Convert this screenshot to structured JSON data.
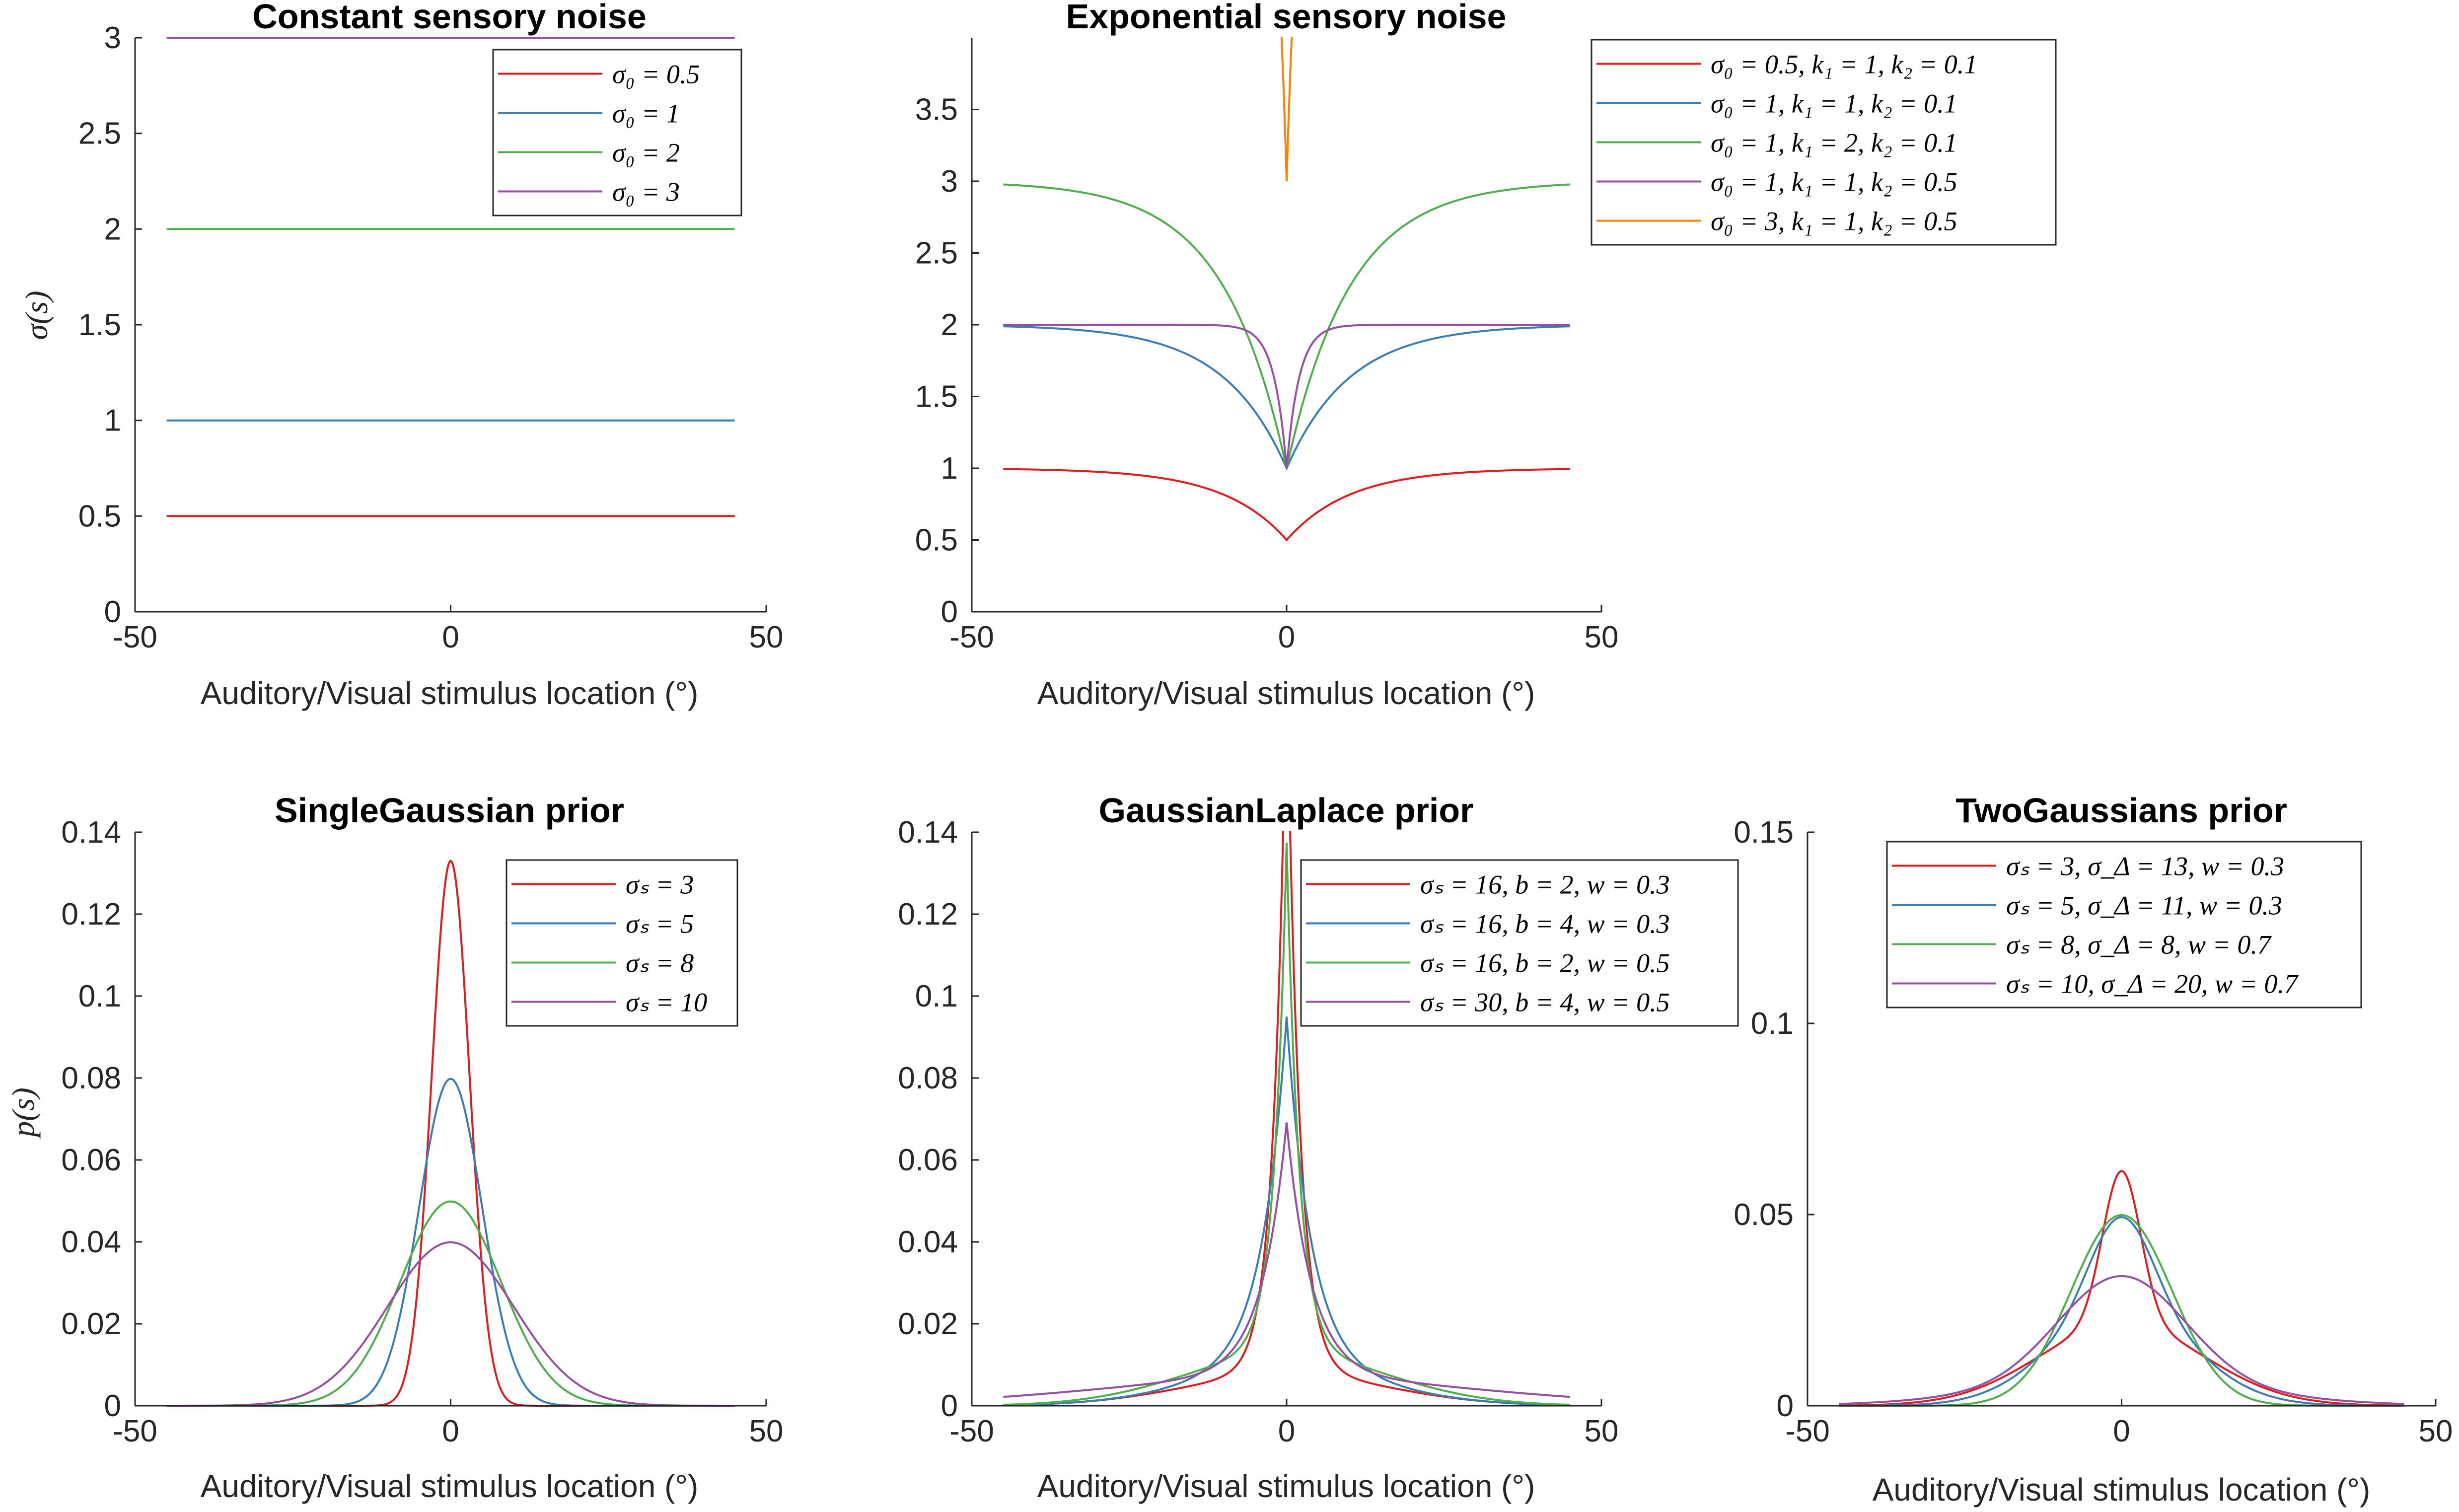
{
  "colors": {
    "red": "#e41a1c",
    "blue": "#377eb8",
    "green": "#4daf4a",
    "purple": "#984ea3",
    "orange": "#ff7f00",
    "axis": "#262626"
  },
  "chart_data": [
    {
      "id": "constant",
      "type": "line",
      "title": "Constant sensory noise",
      "xlabel": "Auditory/Visual stimulus location (°)",
      "ylabel": "σ(s)",
      "xlim": [
        -50,
        50
      ],
      "ylim": [
        0,
        3
      ],
      "xticks": [
        "-50",
        "0",
        "50"
      ],
      "yticks": [
        "0",
        "0.5",
        "1",
        "1.5",
        "2",
        "2.5",
        "3"
      ],
      "legend_position": "top-right",
      "grid": false,
      "series": [
        {
          "name": "σ₀ = 0.5",
          "color": "red",
          "model": "constant",
          "params": {
            "s0": 0.5
          }
        },
        {
          "name": "σ₀ = 1",
          "color": "blue",
          "model": "constant",
          "params": {
            "s0": 1
          }
        },
        {
          "name": "σ₀ = 2",
          "color": "green",
          "model": "constant",
          "params": {
            "s0": 2
          }
        },
        {
          "name": "σ₀ = 3",
          "color": "purple",
          "model": "constant",
          "params": {
            "s0": 3
          }
        }
      ]
    },
    {
      "id": "exponential",
      "type": "line",
      "title": "Exponential sensory noise",
      "xlabel": "Auditory/Visual stimulus location (°)",
      "ylabel": "",
      "xlim": [
        -50,
        50
      ],
      "ylim": [
        0,
        4
      ],
      "xticks": [
        "-50",
        "0",
        "50"
      ],
      "yticks": [
        "0",
        "0.5",
        "1",
        "1.5",
        "2",
        "2.5",
        "3",
        "3.5"
      ],
      "legend_position": "outside-right",
      "grid": false,
      "series": [
        {
          "name": "σ₀ = 0.5, k₁ = 1, k₂ = 0.1",
          "color": "red",
          "model": "exponential",
          "params": {
            "s0": 0.5,
            "k1": 1,
            "k2": 0.1
          }
        },
        {
          "name": "σ₀ = 1, k₁ = 1, k₂ = 0.1",
          "color": "blue",
          "model": "exponential",
          "params": {
            "s0": 1,
            "k1": 1,
            "k2": 0.1
          }
        },
        {
          "name": "σ₀ = 1, k₁ = 2, k₂ = 0.1",
          "color": "green",
          "model": "exponential",
          "params": {
            "s0": 1,
            "k1": 2,
            "k2": 0.1
          }
        },
        {
          "name": "σ₀ = 1, k₁ = 1, k₂ = 0.5",
          "color": "purple",
          "model": "exponential",
          "params": {
            "s0": 1,
            "k1": 1,
            "k2": 0.5
          }
        },
        {
          "name": "σ₀ = 3, k₁ = 1, k₂ = 0.5",
          "color": "orange",
          "model": "exponential",
          "params": {
            "s0": 3,
            "k1": 1,
            "k2": 0.5
          }
        }
      ]
    },
    {
      "id": "single-gaussian",
      "type": "line",
      "title": "SingleGaussian prior",
      "xlabel": "Auditory/Visual stimulus location (°)",
      "ylabel": "p(s)",
      "xlim": [
        -50,
        50
      ],
      "ylim": [
        0,
        0.14
      ],
      "xticks": [
        "-50",
        "0",
        "50"
      ],
      "yticks": [
        "0",
        "0.02",
        "0.04",
        "0.06",
        "0.08",
        "0.1",
        "0.12",
        "0.14"
      ],
      "legend_position": "top-right",
      "grid": false,
      "series": [
        {
          "name": "σₛ = 3",
          "color": "red",
          "model": "gauss",
          "params": {
            "sigma": 3
          }
        },
        {
          "name": "σₛ = 5",
          "color": "blue",
          "model": "gauss",
          "params": {
            "sigma": 5
          }
        },
        {
          "name": "σₛ = 8",
          "color": "green",
          "model": "gauss",
          "params": {
            "sigma": 8
          }
        },
        {
          "name": "σₛ = 10",
          "color": "purple",
          "model": "gauss",
          "params": {
            "sigma": 10
          }
        }
      ]
    },
    {
      "id": "gaussian-laplace",
      "type": "line",
      "title": "GaussianLaplace prior",
      "xlabel": "Auditory/Visual stimulus location (°)",
      "ylabel": "",
      "xlim": [
        -50,
        50
      ],
      "ylim": [
        0,
        0.14
      ],
      "xticks": [
        "-50",
        "0",
        "50"
      ],
      "yticks": [
        "0",
        "0.02",
        "0.04",
        "0.06",
        "0.08",
        "0.1",
        "0.12",
        "0.14"
      ],
      "legend_position": "top-right",
      "grid": false,
      "series": [
        {
          "name": "σₛ = 16, b = 2, w = 0.3",
          "color": "red",
          "model": "gausslaplace",
          "params": {
            "sigma": 16,
            "b": 2,
            "w": 0.3
          }
        },
        {
          "name": "σₛ = 16, b = 4, w = 0.3",
          "color": "blue",
          "model": "gausslaplace",
          "params": {
            "sigma": 16,
            "b": 4,
            "w": 0.3
          }
        },
        {
          "name": "σₛ = 16, b = 2, w = 0.5",
          "color": "green",
          "model": "gausslaplace",
          "params": {
            "sigma": 16,
            "b": 2,
            "w": 0.5
          }
        },
        {
          "name": "σₛ = 30, b = 4, w = 0.5",
          "color": "purple",
          "model": "gausslaplace",
          "params": {
            "sigma": 30,
            "b": 4,
            "w": 0.5
          }
        }
      ]
    },
    {
      "id": "two-gaussians",
      "type": "line",
      "title": "TwoGaussians prior",
      "xlabel": "Auditory/Visual stimulus location (°)",
      "ylabel": "",
      "xlim": [
        -50,
        50
      ],
      "ylim": [
        0,
        0.15
      ],
      "xticks": [
        "-50",
        "0",
        "50"
      ],
      "yticks": [
        "0",
        "0.05",
        "0.1",
        "0.15"
      ],
      "legend_position": "top-right",
      "grid": false,
      "series": [
        {
          "name": "σₛ = 3, σ_Δ = 13, w = 0.3",
          "color": "red",
          "model": "twogauss",
          "params": {
            "s1": 3,
            "s2": 13,
            "w": 0.3
          }
        },
        {
          "name": "σₛ = 5, σ_Δ = 11, w = 0.3",
          "color": "blue",
          "model": "twogauss",
          "params": {
            "s1": 5,
            "s2": 11,
            "w": 0.3
          }
        },
        {
          "name": "σₛ = 8, σ_Δ = 8, w = 0.7",
          "color": "green",
          "model": "twogauss",
          "params": {
            "s1": 8,
            "s2": 8,
            "w": 0.7
          }
        },
        {
          "name": "σₛ = 10, σ_Δ = 20, w = 0.7",
          "color": "purple",
          "model": "twogauss",
          "params": {
            "s1": 10,
            "s2": 20,
            "w": 0.7
          }
        }
      ]
    }
  ]
}
